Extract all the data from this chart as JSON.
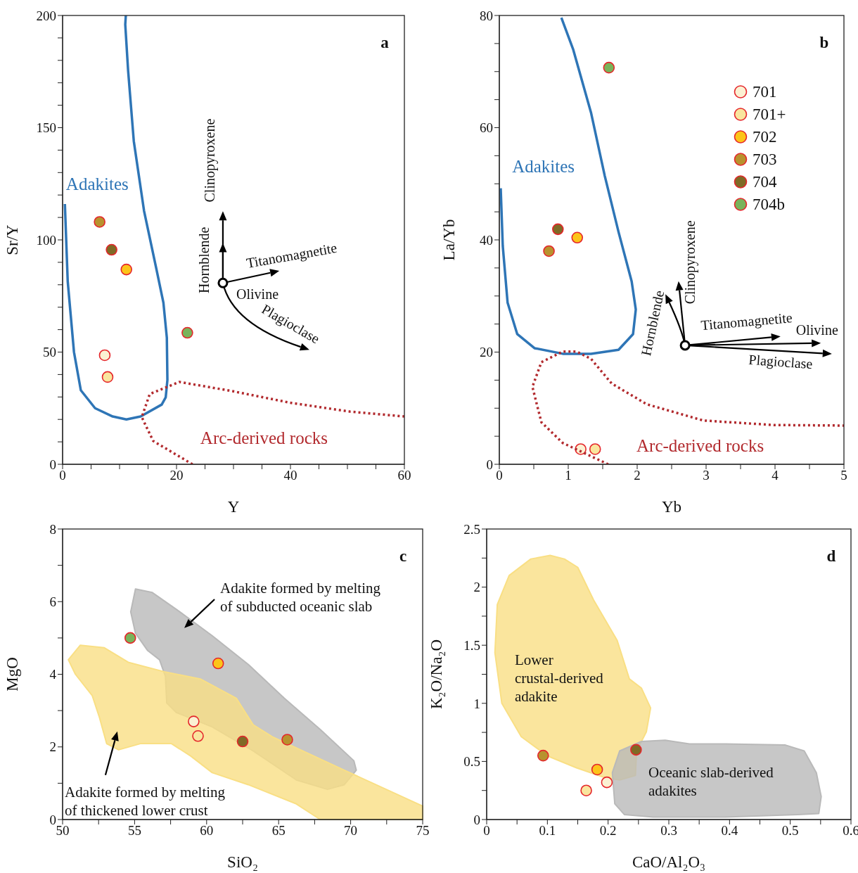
{
  "chart_data": [
    {
      "type": "scatter",
      "title": "a",
      "xlabel": "Y",
      "ylabel": "Sr/Y",
      "xlim": [
        0,
        60
      ],
      "ylim": [
        0,
        200
      ],
      "xticks": [
        0,
        {
          "value": 5,
          "label": null
        },
        {
          "value": 10,
          "label": null
        },
        {
          "value": 15,
          "label": null
        },
        20,
        {
          "value": 25,
          "label": null
        },
        {
          "value": 30,
          "label": null
        },
        {
          "value": 35,
          "label": null
        },
        40,
        {
          "value": 45,
          "label": null
        },
        {
          "value": 50,
          "label": null
        },
        {
          "value": 55,
          "label": null
        },
        60
      ],
      "yticks": [
        0,
        {
          "value": 10,
          "label": null
        },
        {
          "value": 20,
          "label": null
        },
        {
          "value": 30,
          "label": null
        },
        {
          "value": 40,
          "label": null
        },
        50,
        {
          "value": 60,
          "label": null
        },
        {
          "value": 70,
          "label": null
        },
        {
          "value": 80,
          "label": null
        },
        {
          "value": 90,
          "label": null
        },
        100,
        {
          "value": 110,
          "label": null
        },
        {
          "value": 120,
          "label": null
        },
        {
          "value": 130,
          "label": null
        },
        {
          "value": 140,
          "label": null
        },
        150,
        {
          "value": 160,
          "label": null
        },
        {
          "value": 170,
          "label": null
        },
        {
          "value": 180,
          "label": null
        },
        {
          "value": 190,
          "label": null
        },
        200
      ],
      "annotations": [
        "Clinopyroxene",
        "Hornblende",
        "Titanomagnetite",
        "Olivine",
        "Plagioclase"
      ],
      "series": [
        {
          "marker": "circle",
          "color": "#fbf1d3",
          "x": [
            7.4
          ],
          "values": [
            48.6
          ]
        },
        {
          "marker": "circle",
          "color": "#f9e59e",
          "x": [
            7.9
          ],
          "values": [
            38.9
          ]
        },
        {
          "marker": "circle",
          "color": "#fcc419",
          "x": [
            11.2
          ],
          "values": [
            86.8
          ]
        },
        {
          "marker": "circle",
          "color": "#b8922e",
          "x": [
            6.5
          ],
          "values": [
            108
          ]
        },
        {
          "marker": "circle",
          "color": "#7f6a26",
          "x": [
            8.6
          ],
          "values": [
            95.6
          ]
        },
        {
          "marker": "circle",
          "color": "#79b35a",
          "x": [
            21.9
          ],
          "values": [
            58.6
          ]
        },
        {
          "type": "line",
          "name": "Adakites",
          "color": "#2e75b6",
          "line_style": "solid",
          "x": [
            0.4,
            0.9,
            2,
            3.2,
            5.7,
            8.8,
            11.2,
            13.7,
            17.4,
            18.1,
            18.4,
            18.3,
            17.7,
            16.4,
            14.3,
            12.5,
            11.5,
            11,
            11.1
          ],
          "values": [
            116,
            81.5,
            50,
            33,
            25,
            21.3,
            20,
            21.3,
            26.6,
            29.8,
            37.6,
            56.4,
            72,
            87.8,
            112.9,
            144,
            175.5,
            196,
            200
          ]
        },
        {
          "type": "line",
          "name": "Arc-derived rocks",
          "color": "#b22a2e",
          "line_style": "dotted",
          "x": [
            22.8,
            15.9,
            13.9,
            15.3,
            20.5,
            29.8,
            40,
            50.4,
            60
          ],
          "values": [
            0,
            10.4,
            21,
            31.3,
            36.7,
            32.6,
            27.4,
            23.5,
            21.3
          ]
        }
      ]
    },
    {
      "type": "scatter",
      "title": "b",
      "xlabel": "Yb",
      "ylabel": "La/Yb",
      "xlim": [
        0,
        5
      ],
      "ylim": [
        0,
        80
      ],
      "legend": "top right",
      "xticks": [
        0,
        {
          "value": 0.5,
          "label": null
        },
        1,
        {
          "value": 1.5,
          "label": null
        },
        2,
        {
          "value": 2.5,
          "label": null
        },
        3,
        {
          "value": 3.5,
          "label": null
        },
        4,
        {
          "value": 4.5,
          "label": null
        },
        5
      ],
      "yticks": [
        0,
        {
          "value": 5,
          "label": null
        },
        {
          "value": 10,
          "label": null
        },
        {
          "value": 15,
          "label": null
        },
        20,
        {
          "value": 25,
          "label": null
        },
        {
          "value": 30,
          "label": null
        },
        {
          "value": 35,
          "label": null
        },
        40,
        {
          "value": 45,
          "label": null
        },
        {
          "value": 50,
          "label": null
        },
        {
          "value": 55,
          "label": null
        },
        60,
        {
          "value": 65,
          "label": null
        },
        {
          "value": 70,
          "label": null
        },
        {
          "value": 75,
          "label": null
        },
        80
      ],
      "annotations": [
        "Clinopyroxene",
        "Hornblende",
        "Titanomagnetite",
        "Olivine",
        "Plagioclase"
      ],
      "series": [
        {
          "marker": "circle",
          "name": "701",
          "color": "#fbf1d3",
          "x": [
            1.18
          ],
          "values": [
            2.7
          ]
        },
        {
          "marker": "circle",
          "name": "701+",
          "color": "#f9e59e",
          "x": [
            1.39
          ],
          "values": [
            2.7
          ]
        },
        {
          "marker": "circle",
          "name": "702",
          "color": "#fcc419",
          "x": [
            1.13
          ],
          "values": [
            40.4
          ]
        },
        {
          "marker": "circle",
          "name": "703",
          "color": "#b8922e",
          "x": [
            0.72
          ],
          "values": [
            38
          ]
        },
        {
          "marker": "circle",
          "name": "704",
          "color": "#7f6a26",
          "x": [
            0.85
          ],
          "values": [
            41.9
          ]
        },
        {
          "marker": "circle",
          "name": "704b",
          "color": "#79b35a",
          "x": [
            1.59
          ],
          "values": [
            70.7
          ]
        },
        {
          "type": "line",
          "name": "Adakites",
          "color": "#2e75b6",
          "line_style": "solid",
          "x": [
            0.02,
            0.05,
            0.12,
            0.26,
            0.51,
            0.92,
            1.33,
            1.73,
            1.94,
            1.98,
            1.92,
            1.73,
            1.53,
            1.33,
            1.07,
            0.9
          ],
          "values": [
            49.2,
            38.9,
            28.8,
            23.2,
            20.7,
            19.7,
            19.7,
            20.4,
            23.2,
            27.6,
            32.6,
            41.4,
            51.4,
            62.7,
            74,
            79.6
          ]
        },
        {
          "type": "line",
          "name": "Arc-derived rocks",
          "color": "#b22a2e",
          "line_style": "dotted",
          "x": [
            1.58,
            0.92,
            0.61,
            0.48,
            0.61,
            0.92,
            1.12,
            1.33,
            1.63,
            2.14,
            2.96,
            3.98,
            5
          ],
          "values": [
            0,
            3.8,
            7.5,
            13.8,
            18.2,
            20.1,
            20.1,
            18.8,
            14.4,
            10.7,
            7.8,
            7,
            6.9
          ]
        }
      ]
    },
    {
      "type": "scatter",
      "title": "c",
      "xlabel": "SiO₂",
      "ylabel": "MgO",
      "xlim": [
        50,
        75
      ],
      "ylim": [
        0,
        8
      ],
      "xticks": [
        50,
        {
          "value": 52.5,
          "label": null
        },
        55,
        {
          "value": 57.5,
          "label": null
        },
        60,
        {
          "value": 62.5,
          "label": null
        },
        65,
        {
          "value": 67.5,
          "label": null
        },
        70,
        {
          "value": 72.5,
          "label": null
        },
        75
      ],
      "yticks": [
        0,
        {
          "value": 1,
          "label": null
        },
        2,
        {
          "value": 3,
          "label": null
        },
        4,
        {
          "value": 5,
          "label": null
        },
        6,
        {
          "value": 7,
          "label": null
        },
        8
      ],
      "series": [
        {
          "marker": "circle",
          "color": "#fbf1d3",
          "x": [
            59.1
          ],
          "values": [
            2.7
          ]
        },
        {
          "marker": "circle",
          "color": "#f9e59e",
          "x": [
            59.4
          ],
          "values": [
            2.3
          ]
        },
        {
          "marker": "circle",
          "color": "#fcc419",
          "x": [
            60.8
          ],
          "values": [
            4.3
          ]
        },
        {
          "marker": "circle",
          "color": "#b8922e",
          "x": [
            65.6
          ],
          "values": [
            2.2
          ]
        },
        {
          "marker": "circle",
          "color": "#7f6a26",
          "x": [
            62.5
          ],
          "values": [
            2.15
          ]
        },
        {
          "marker": "circle",
          "color": "#79b35a",
          "x": [
            54.7
          ],
          "values": [
            5
          ]
        },
        {
          "type": "area",
          "name": "Adakite formed by melting of subducted oceanic slab",
          "color": "#b9b9b9",
          "x": [
            55.06,
            56.23,
            57.89,
            60.39,
            62.89,
            65.39,
            67.89,
            70.22,
            70.39,
            69.56,
            68.39,
            66.23,
            63.23,
            60.39,
            57.89,
            57.23,
            57.14,
            56.73,
            55.89,
            55.06,
            54.73
          ],
          "values": [
            6.35,
            6.25,
            5.79,
            5.06,
            4.27,
            3.34,
            2.48,
            1.62,
            1.36,
            0.96,
            0.83,
            1.09,
            1.89,
            2.55,
            2.95,
            3.21,
            3.94,
            4.4,
            4.66,
            5.13,
            5.72
          ]
        },
        {
          "type": "area",
          "name": "Adakite formed by melting of thickened lower crust",
          "color": "#f9df84",
          "x": [
            50.4,
            51.23,
            52.9,
            54.56,
            57.06,
            59.56,
            62.06,
            63.23,
            64.56,
            67.06,
            69.56,
            75,
            75,
            67.89,
            66.23,
            62.89,
            60.39,
            58.89,
            57.56,
            55.4,
            53.89,
            53.06,
            52.56,
            52.06,
            50.89
          ],
          "values": [
            4.4,
            4.8,
            4.73,
            4.33,
            4.07,
            3.87,
            3.34,
            2.61,
            2.28,
            1.82,
            1.36,
            0.37,
            0,
            0,
            0.43,
            0.96,
            1.29,
            1.75,
            2.09,
            2.09,
            1.92,
            2.09,
            2.81,
            3.41,
            4
          ]
        }
      ]
    },
    {
      "type": "scatter",
      "title": "d",
      "xlabel": "CaO/Al₂O₃",
      "ylabel": "K₂O/Na₂O",
      "xlim": [
        0,
        0.6
      ],
      "ylim": [
        0,
        2.5
      ],
      "xticks": [
        0,
        {
          "value": 0.05,
          "label": null
        },
        0.1,
        {
          "value": 0.15,
          "label": null
        },
        0.2,
        {
          "value": 0.25,
          "label": null
        },
        0.3,
        {
          "value": 0.35,
          "label": null
        },
        0.4,
        {
          "value": 0.45,
          "label": null
        },
        0.5,
        {
          "value": 0.55,
          "label": null
        },
        0.6
      ],
      "yticks": [
        0,
        {
          "value": 0.25,
          "label": null
        },
        0.5,
        {
          "value": 0.75,
          "label": null
        },
        1,
        {
          "value": 1.25,
          "label": null
        },
        1.5,
        {
          "value": 1.75,
          "label": null
        },
        2,
        {
          "value": 2.25,
          "label": null
        },
        2.5
      ],
      "series": [
        {
          "marker": "circle",
          "color": "#fbf1d3",
          "x": [
            0.198
          ],
          "values": [
            0.32
          ]
        },
        {
          "marker": "circle",
          "color": "#f9e59e",
          "x": [
            0.164
          ],
          "values": [
            0.25
          ]
        },
        {
          "marker": "circle",
          "color": "#fcc419",
          "x": [
            0.182
          ],
          "values": [
            0.43
          ]
        },
        {
          "marker": "circle",
          "color": "#b8922e",
          "x": [
            0.093
          ],
          "values": [
            0.55
          ]
        },
        {
          "marker": "circle",
          "color": "#7f6a26",
          "x": [
            0.246
          ],
          "values": [
            0.6
          ]
        },
        {
          "type": "area",
          "name": "Lower crustal-derived adakite",
          "color": "#f9df84",
          "x": [
            0.0727,
            0.1045,
            0.128,
            0.15,
            0.176,
            0.215,
            0.235,
            0.255,
            0.27,
            0.263,
            0.247,
            0.245,
            0.219,
            0.195,
            0.148,
            0.1,
            0.057,
            0.025,
            0.0136,
            0.0175,
            0.037
          ],
          "values": [
            2.242,
            2.273,
            2.242,
            2.17,
            1.89,
            1.54,
            1.21,
            1.13,
            0.96,
            0.755,
            0.59,
            0.38,
            0.34,
            0.36,
            0.445,
            0.548,
            0.713,
            1,
            1.436,
            1.85,
            2.1
          ]
        },
        {
          "type": "area",
          "name": "Oceanic slab-derived adakites",
          "color": "#b9b9b9",
          "x": [
            0.219,
            0.255,
            0.294,
            0.334,
            0.393,
            0.492,
            0.523,
            0.543,
            0.551,
            0.547,
            0.512,
            0.393,
            0.274,
            0.227,
            0.211,
            0.207
          ],
          "values": [
            0.59,
            0.672,
            0.682,
            0.651,
            0.651,
            0.641,
            0.59,
            0.403,
            0.197,
            0.052,
            0.042,
            0.021,
            0.021,
            0.042,
            0.135,
            0.403
          ]
        }
      ]
    }
  ]
}
